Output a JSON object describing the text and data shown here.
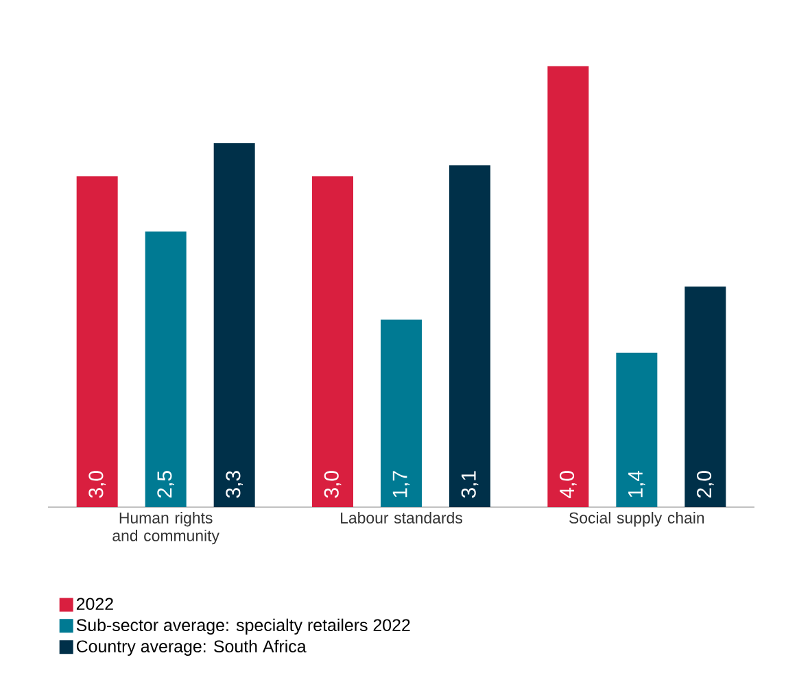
{
  "chart_data": {
    "type": "bar",
    "categories": [
      "Human rights and community",
      "Labour standards",
      "Social supply chain"
    ],
    "series": [
      {
        "name": "2022",
        "color": "#d91f3f",
        "values": [
          3.0,
          3.0,
          4.0
        ],
        "value_labels": [
          "3,0",
          "3,0",
          "4,0"
        ]
      },
      {
        "name": "Sub-sector average: specialty retailers 2022",
        "color": "#007a93",
        "values": [
          2.5,
          1.7,
          1.4
        ],
        "value_labels": [
          "2,5",
          "1,7",
          "1,4"
        ]
      },
      {
        "name": "Country average: South Africa",
        "color": "#003049",
        "values": [
          3.3,
          3.1,
          2.0
        ],
        "value_labels": [
          "3,3",
          "3,1",
          "2,0"
        ]
      }
    ],
    "legend": "bottom"
  }
}
